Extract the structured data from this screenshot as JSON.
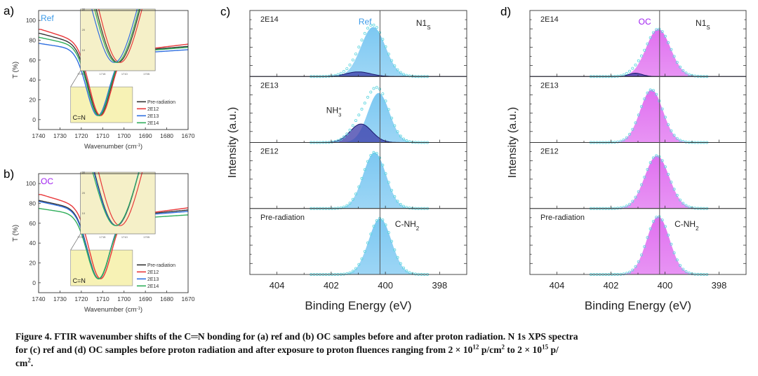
{
  "caption": {
    "figure_label": "Figure 4.",
    "line1": " FTIR wavenumber shifts of the C═N bonding for (a) ref and (b) OC samples before and after proton radiation. N 1s XPS spectra",
    "line2_a": "for (c) ref and (d) OC samples before proton radiation and after exposure to proton fluences ranging from 2 × 10",
    "sup1": "12",
    "line2_b": " p/cm",
    "sup2": "2",
    "line2_c": " to 2 × 10",
    "sup3": "15",
    "line2_d": " p/",
    "line3": "cm",
    "sup4": "2",
    "line3_end": "."
  },
  "chart_data": [
    {
      "panel": "a)",
      "type": "line",
      "sample_label": "Ref",
      "sample_color": "#3b9ae8",
      "xlabel": "Wavenumber (cm-1)",
      "ylabel": "T (%)",
      "xlim": [
        1740,
        1670
      ],
      "ylim": [
        -10,
        110
      ],
      "xticks": [
        1740,
        1730,
        1720,
        1710,
        1700,
        1690,
        1680,
        1670
      ],
      "yticks": [
        0,
        20,
        40,
        60,
        80,
        100
      ],
      "highlight_label": "C=N",
      "highlight_range": {
        "x": [
          1725,
          1696
        ],
        "y": [
          -3,
          33
        ]
      },
      "inset": {
        "xticks": [
          1720,
          1715,
          1710,
          1705
        ],
        "yticks": [
          10,
          20,
          30
        ],
        "xlim": [
          1720,
          1703
        ],
        "ylim": [
          0,
          30
        ]
      },
      "legend": [
        "Pre-radiation",
        "2E12",
        "2E13",
        "2E14"
      ],
      "legend_position": "bottom-right",
      "series": [
        {
          "name": "Pre-radiation",
          "color": "#333333",
          "start": 87,
          "min_x": 1711.5,
          "min_y": 4,
          "plateau": 71,
          "end": 77
        },
        {
          "name": "2E12",
          "color": "#e8383a",
          "start": 91,
          "min_x": 1711.0,
          "min_y": 4,
          "plateau": 72,
          "end": 81
        },
        {
          "name": "2E13",
          "color": "#2f6fe0",
          "start": 77,
          "min_x": 1712.3,
          "min_y": 4,
          "plateau": 68,
          "end": 73
        },
        {
          "name": "2E14",
          "color": "#2fae5b",
          "start": 83,
          "min_x": 1711.8,
          "min_y": 4,
          "plateau": 70,
          "end": 76
        }
      ]
    },
    {
      "panel": "b)",
      "type": "line",
      "sample_label": "OC",
      "sample_color": "#a020f0",
      "xlabel": "Wavenumber (cm-1)",
      "ylabel": "T (%)",
      "xlim": [
        1740,
        1670
      ],
      "ylim": [
        -10,
        110
      ],
      "xticks": [
        1740,
        1730,
        1720,
        1710,
        1700,
        1690,
        1680,
        1670
      ],
      "yticks": [
        0,
        20,
        40,
        60,
        80,
        100
      ],
      "highlight_label": "C=N",
      "highlight_range": {
        "x": [
          1725,
          1696
        ],
        "y": [
          -3,
          33
        ]
      },
      "inset": {
        "xticks": [
          1720,
          1715,
          1710,
          1705
        ],
        "yticks": [
          10,
          20,
          30
        ],
        "xlim": [
          1720,
          1703
        ],
        "ylim": [
          0,
          30
        ]
      },
      "legend": [
        "Pre-radiation",
        "2E12",
        "2E13",
        "2E14"
      ],
      "legend_position": "bottom-right",
      "series": [
        {
          "name": "Pre-radiation",
          "color": "#333333",
          "start": 83,
          "min_x": 1711.8,
          "min_y": 4,
          "plateau": 70,
          "end": 77
        },
        {
          "name": "2E12",
          "color": "#e8383a",
          "start": 89,
          "min_x": 1711.0,
          "min_y": 4,
          "plateau": 71,
          "end": 81
        },
        {
          "name": "2E13",
          "color": "#2f6fe0",
          "start": 82,
          "min_x": 1711.9,
          "min_y": 4,
          "plateau": 69,
          "end": 75
        },
        {
          "name": "2E14",
          "color": "#2fae5b",
          "start": 75,
          "min_x": 1712.0,
          "min_y": 4,
          "plateau": 66,
          "end": 71
        }
      ]
    },
    {
      "panel": "c)",
      "type": "area",
      "sample_label": "Ref",
      "sample_color": "#3b9ae8",
      "core_level": "N1",
      "core_level_sub": "S",
      "xlabel": "Binding Energy (eV)",
      "ylabel": "Intensity (a.u.)",
      "xlim": [
        405,
        397
      ],
      "xticks": [
        404,
        402,
        400,
        398
      ],
      "reference_line_x": 400.2,
      "fill_color": "#7cc8f2",
      "minor_fill_color": "#3a3aa8",
      "marker_color": "#5fd6e0",
      "annotations": [
        {
          "text": "NH3+",
          "subpanel": "2E13"
        },
        {
          "text": "C-NH2",
          "subpanel": "Pre-radiation"
        }
      ],
      "subpanels": [
        {
          "label": "2E14",
          "main": {
            "center": 400.45,
            "sigma": 0.45,
            "height": 0.75
          },
          "minor": {
            "center": 401.0,
            "sigma": 0.45,
            "height": 0.07
          }
        },
        {
          "label": "2E13",
          "main": {
            "center": 400.25,
            "sigma": 0.4,
            "height": 0.75
          },
          "minor": {
            "center": 400.9,
            "sigma": 0.4,
            "height": 0.28
          }
        },
        {
          "label": "2E12",
          "main": {
            "center": 400.4,
            "sigma": 0.42,
            "height": 0.85
          },
          "minor": null
        },
        {
          "label": "Pre-radiation",
          "main": {
            "center": 400.2,
            "sigma": 0.42,
            "height": 0.85
          },
          "minor": null
        }
      ]
    },
    {
      "panel": "d)",
      "type": "area",
      "sample_label": "OC",
      "sample_color": "#a020f0",
      "core_level": "N1",
      "core_level_sub": "S",
      "xlabel": "Binding Energy (eV)",
      "ylabel": "Intensity (a.u.)",
      "xlim": [
        405,
        397
      ],
      "xticks": [
        404,
        402,
        400,
        398
      ],
      "reference_line_x": 400.2,
      "fill_color": "#e070f0",
      "minor_fill_color": "#3a3aa8",
      "marker_color": "#5fd6e0",
      "annotations": [
        {
          "text": "C-NH2",
          "subpanel": "Pre-radiation"
        }
      ],
      "subpanels": [
        {
          "label": "2E14",
          "main": {
            "center": 400.25,
            "sigma": 0.45,
            "height": 0.72
          },
          "minor": {
            "center": 401.1,
            "sigma": 0.25,
            "height": 0.05
          }
        },
        {
          "label": "2E13",
          "main": {
            "center": 400.5,
            "sigma": 0.42,
            "height": 0.8
          },
          "minor": null
        },
        {
          "label": "2E12",
          "main": {
            "center": 400.3,
            "sigma": 0.45,
            "height": 0.8
          },
          "minor": null
        },
        {
          "label": "Pre-radiation",
          "main": {
            "center": 400.25,
            "sigma": 0.42,
            "height": 0.88
          },
          "minor": null
        }
      ]
    }
  ]
}
